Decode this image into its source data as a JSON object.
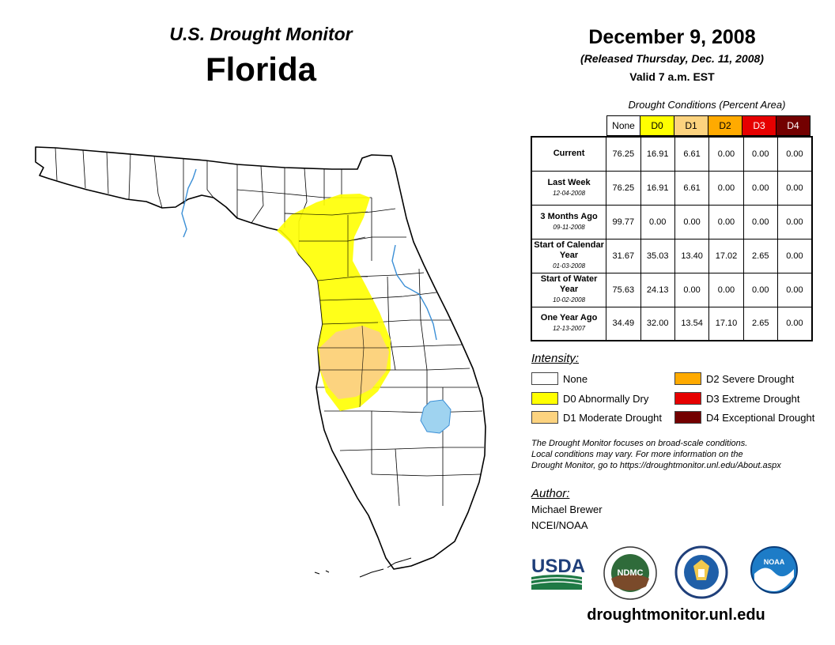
{
  "header": {
    "monitor_title": "U.S. Drought Monitor",
    "state": "Florida",
    "date": "December 9, 2008",
    "released": "(Released Thursday, Dec. 11, 2008)",
    "valid": "Valid 7 a.m. EST"
  },
  "conditions": {
    "caption": "Drought Conditions (Percent Area)",
    "columns": [
      "None",
      "D0",
      "D1",
      "D2",
      "D3",
      "D4"
    ],
    "column_colors": [
      "#ffffff",
      "#ffff00",
      "#fcd37f",
      "#ffaa00",
      "#e60000",
      "#730000"
    ],
    "column_text_colors": [
      "#000000",
      "#000000",
      "#000000",
      "#000000",
      "#ffffff",
      "#ffffff"
    ],
    "rows": [
      {
        "label": "Current",
        "date": "",
        "values": [
          "76.25",
          "16.91",
          "6.61",
          "0.00",
          "0.00",
          "0.00"
        ]
      },
      {
        "label": "Last Week",
        "date": "12-04-2008",
        "values": [
          "76.25",
          "16.91",
          "6.61",
          "0.00",
          "0.00",
          "0.00"
        ]
      },
      {
        "label": "3 Months Ago",
        "date": "09-11-2008",
        "values": [
          "99.77",
          "0.00",
          "0.00",
          "0.00",
          "0.00",
          "0.00"
        ]
      },
      {
        "label": "Start of Calendar Year",
        "date": "01-03-2008",
        "values": [
          "31.67",
          "35.03",
          "13.40",
          "17.02",
          "2.65",
          "0.00"
        ]
      },
      {
        "label": "Start of Water Year",
        "date": "10-02-2008",
        "values": [
          "75.63",
          "24.13",
          "0.00",
          "0.00",
          "0.00",
          "0.00"
        ]
      },
      {
        "label": "One Year Ago",
        "date": "12-13-2007",
        "values": [
          "34.49",
          "32.00",
          "13.54",
          "17.10",
          "2.65",
          "0.00"
        ]
      }
    ]
  },
  "legend": {
    "title": "Intensity:",
    "items": [
      {
        "label": "None",
        "color": "#ffffff"
      },
      {
        "label": "D0 Abnormally Dry",
        "color": "#ffff00"
      },
      {
        "label": "D1 Moderate Drought",
        "color": "#fcd37f"
      },
      {
        "label": "D2 Severe Drought",
        "color": "#ffaa00"
      },
      {
        "label": "D3 Extreme Drought",
        "color": "#e60000"
      },
      {
        "label": "D4 Exceptional Drought",
        "color": "#730000"
      }
    ]
  },
  "note": {
    "line1": "The Drought Monitor focuses on broad-scale conditions.",
    "line2": "Local conditions may vary. For more information on the",
    "line3": "Drought Monitor, go to https://droughtmonitor.unl.edu/About.aspx"
  },
  "author": {
    "title": "Author:",
    "name": "Michael Brewer",
    "org": "NCEI/NOAA"
  },
  "logos": {
    "usda": "USDA",
    "ndmc": "NDMC",
    "noaa": "NOAA"
  },
  "website": "droughtmonitor.unl.edu",
  "map_colors": {
    "land": "#ffffff",
    "border": "#000000",
    "water": "#3b8fd6",
    "lake": "#9fd3f0"
  }
}
